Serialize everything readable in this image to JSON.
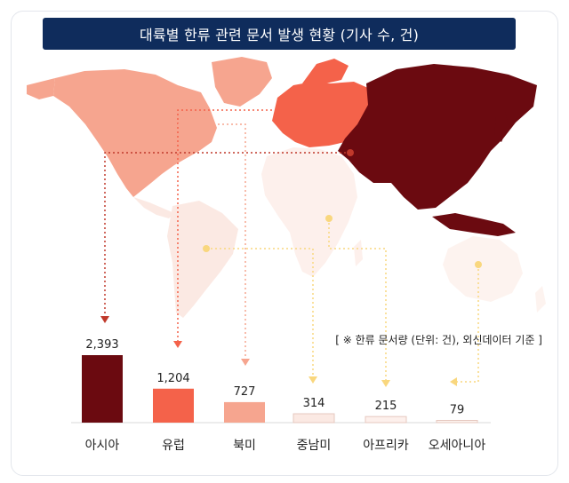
{
  "title": "대륙별 한류 관련 문서 발생 현황 (기사 수, 건)",
  "note": "[ ※ 한류 문서량 (단위: 건), 외신데이터 기준 ]",
  "colors": {
    "title_bg": "#0f2c5c",
    "asia": "#6b0a10",
    "europe": "#f4624a",
    "north_america": "#f6a58f",
    "latin_america": "#fbe9e3",
    "africa": "#fdf0ec",
    "oceania": "#fdf3ef",
    "marker_red": "#c0392b",
    "marker_yellow": "#f9d77e"
  },
  "chart_data": {
    "type": "bar",
    "categories": [
      "아시아",
      "유럽",
      "북미",
      "중남미",
      "아프리카",
      "오세아니아"
    ],
    "values": [
      2393,
      1204,
      727,
      314,
      215,
      79
    ],
    "value_labels": [
      "2,393",
      "1,204",
      "727",
      "314",
      "215",
      "79"
    ],
    "title": "대륙별 한류 관련 문서 발생 현황 (기사 수, 건)",
    "xlabel": "",
    "ylabel": "",
    "ylim": [
      0,
      2393
    ],
    "grid": false,
    "colors": [
      "#6b0a10",
      "#f4624a",
      "#f6a58f",
      "#fbe9e3",
      "#fdf0ec",
      "#fdf3ef"
    ]
  }
}
